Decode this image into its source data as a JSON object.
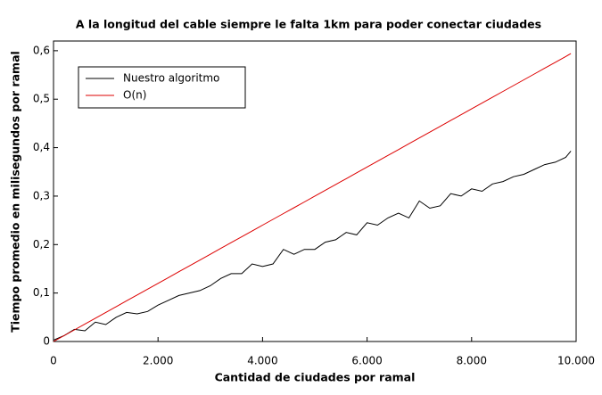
{
  "chart_data": {
    "type": "line",
    "title": "A la longitud del cable siempre le falta 1km para poder conectar ciudades",
    "x_label": "Cantidad de ciudades por ramal",
    "y_label": "Tiempo promedio en milisegundos por ramal",
    "x": [
      0,
      200,
      400,
      600,
      800,
      1000,
      1200,
      1400,
      1600,
      1800,
      2000,
      2200,
      2400,
      2600,
      2800,
      3000,
      3200,
      3400,
      3600,
      3800,
      4000,
      4200,
      4400,
      4600,
      4800,
      5000,
      5200,
      5400,
      5600,
      5800,
      6000,
      6200,
      6400,
      6600,
      6800,
      7000,
      7200,
      7400,
      7600,
      7800,
      8000,
      8200,
      8400,
      8600,
      8800,
      9000,
      9200,
      9400,
      9600,
      9800,
      9900
    ],
    "series": [
      {
        "name": "Nuestro algoritmo",
        "color": "#000000",
        "values": [
          0.003,
          0.012,
          0.025,
          0.022,
          0.04,
          0.035,
          0.05,
          0.06,
          0.057,
          0.062,
          0.075,
          0.085,
          0.095,
          0.1,
          0.105,
          0.115,
          0.13,
          0.14,
          0.14,
          0.16,
          0.155,
          0.16,
          0.19,
          0.18,
          0.19,
          0.19,
          0.205,
          0.21,
          0.225,
          0.22,
          0.245,
          0.24,
          0.255,
          0.265,
          0.255,
          0.29,
          0.275,
          0.28,
          0.305,
          0.3,
          0.315,
          0.31,
          0.325,
          0.33,
          0.34,
          0.345,
          0.355,
          0.365,
          0.37,
          0.38,
          0.393
        ]
      },
      {
        "name": "O(n)",
        "color": "#dd0000",
        "values": [
          0,
          0.012,
          0.024,
          0.036,
          0.048,
          0.06,
          0.072,
          0.084,
          0.096,
          0.108,
          0.12,
          0.132,
          0.144,
          0.156,
          0.168,
          0.18,
          0.192,
          0.204,
          0.216,
          0.228,
          0.24,
          0.252,
          0.264,
          0.276,
          0.288,
          0.3,
          0.312,
          0.324,
          0.336,
          0.348,
          0.36,
          0.372,
          0.384,
          0.396,
          0.408,
          0.42,
          0.432,
          0.444,
          0.456,
          0.468,
          0.48,
          0.492,
          0.504,
          0.516,
          0.528,
          0.54,
          0.552,
          0.564,
          0.576,
          0.588,
          0.594
        ]
      }
    ],
    "xlim": [
      0,
      10000
    ],
    "xticks": [
      0,
      {
        "value": 2000,
        "label": "2.000"
      },
      {
        "value": 4000,
        "label": "4.000"
      },
      {
        "value": 6000,
        "label": "6.000"
      },
      {
        "value": 8000,
        "label": "8.000"
      },
      {
        "value": 10000,
        "label": "10.000"
      }
    ],
    "ylim": [
      0,
      0.62
    ],
    "yticks": [
      0,
      {
        "value": 0.1,
        "label": "0,1"
      },
      {
        "value": 0.2,
        "label": "0,2"
      },
      {
        "value": 0.3,
        "label": "0,3"
      },
      {
        "value": 0.4,
        "label": "0,4"
      },
      {
        "value": 0.5,
        "label": "0,5"
      },
      {
        "value": 0.6,
        "label": "0,6"
      }
    ],
    "legend": "top-left"
  }
}
